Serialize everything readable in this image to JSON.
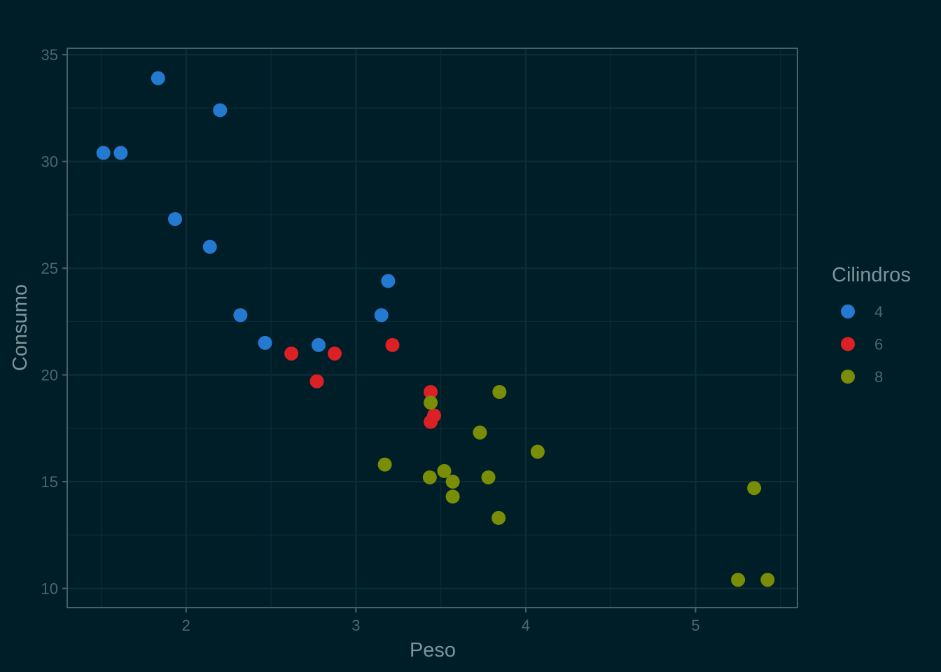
{
  "colors": {
    "background": "#001e28",
    "grid": "#0c2c36",
    "axis": "#49616b",
    "tick_text": "#4d6670",
    "title_text": "#7f939a"
  },
  "chart_data": {
    "type": "scatter",
    "xlabel": "Peso",
    "ylabel": "Consumo",
    "xlim": [
      1.3,
      5.6
    ],
    "ylim": [
      9.1,
      35.3
    ],
    "x_ticks": [
      2,
      3,
      4,
      5
    ],
    "x_tick_labels": [
      "2",
      "3",
      "4",
      "5"
    ],
    "y_ticks": [
      10,
      15,
      20,
      25,
      30,
      35
    ],
    "y_tick_labels": [
      "10",
      "15",
      "20",
      "25",
      "30",
      "35"
    ],
    "grid": true,
    "legend": {
      "title": "Cilindros",
      "placement": "right"
    },
    "series": [
      {
        "name": "4",
        "color": "#2479d0",
        "points": [
          [
            1.513,
            30.4
          ],
          [
            1.615,
            30.4
          ],
          [
            1.835,
            33.9
          ],
          [
            1.935,
            27.3
          ],
          [
            2.14,
            26.0
          ],
          [
            2.2,
            32.4
          ],
          [
            2.32,
            22.8
          ],
          [
            2.465,
            21.5
          ],
          [
            2.78,
            21.4
          ],
          [
            3.15,
            22.8
          ],
          [
            3.19,
            24.4
          ]
        ]
      },
      {
        "name": "6",
        "color": "#dc2126",
        "points": [
          [
            2.62,
            21.0
          ],
          [
            2.77,
            19.7
          ],
          [
            2.875,
            21.0
          ],
          [
            3.215,
            21.4
          ],
          [
            3.44,
            19.2
          ],
          [
            3.44,
            17.8
          ],
          [
            3.46,
            18.1
          ]
        ]
      },
      {
        "name": "8",
        "color": "#7a8d06",
        "points": [
          [
            3.17,
            15.8
          ],
          [
            3.435,
            15.2
          ],
          [
            3.44,
            18.7
          ],
          [
            3.52,
            15.5
          ],
          [
            3.57,
            15.0
          ],
          [
            3.57,
            14.3
          ],
          [
            3.73,
            17.3
          ],
          [
            3.78,
            15.2
          ],
          [
            3.84,
            13.3
          ],
          [
            3.845,
            19.2
          ],
          [
            4.07,
            16.4
          ],
          [
            5.25,
            10.4
          ],
          [
            5.345,
            14.7
          ],
          [
            5.424,
            10.4
          ]
        ]
      }
    ]
  }
}
